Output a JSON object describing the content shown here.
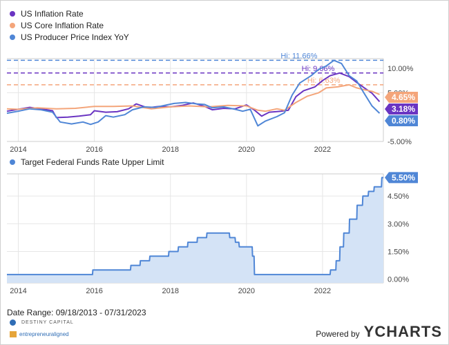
{
  "legend_top": [
    {
      "label": "US Inflation Rate",
      "color": "#6a34c2"
    },
    {
      "label": "US Core Inflation Rate",
      "color": "#f4a57a"
    },
    {
      "label": "US Producer Price Index YoY",
      "color": "#4f86d6"
    }
  ],
  "legend_bottom": [
    {
      "label": "Target Federal Funds Rate Upper Limit",
      "color": "#4f86d6"
    }
  ],
  "footer": {
    "date_range": "Date Range: 09/18/2013 - 07/31/2023",
    "logo1": "DESTINY CAPITAL",
    "logo2": "entrepreneuraligned",
    "powered_by": "Powered by",
    "brand": "YCHARTS"
  },
  "chart_data": [
    {
      "type": "line",
      "x_ticks": [
        "2014",
        "2016",
        "2018",
        "2020",
        "2022"
      ],
      "y_ticks": [
        "10.00%",
        "5.00%",
        "-5.00%"
      ],
      "ylim": [
        -5,
        12
      ],
      "xlim": [
        2013.7,
        2023.6
      ],
      "hi_lines": [
        {
          "label": "Hi: 11.66%",
          "value": 11.66,
          "color": "#4f86d6"
        },
        {
          "label": "Hi: 9.06%",
          "value": 9.06,
          "color": "#6a34c2"
        },
        {
          "label": "Hi: 6.63%",
          "value": 6.63,
          "color": "#f4a57a"
        }
      ],
      "series": [
        {
          "name": "US Inflation Rate",
          "color": "#6a34c2",
          "last_label": "3.18%",
          "x": [
            2013.7,
            2014.0,
            2014.3,
            2014.6,
            2014.9,
            2015.0,
            2015.3,
            2015.6,
            2015.9,
            2016.0,
            2016.3,
            2016.6,
            2016.9,
            2017.1,
            2017.4,
            2017.7,
            2018.0,
            2018.3,
            2018.6,
            2018.9,
            2019.1,
            2019.4,
            2019.7,
            2020.0,
            2020.2,
            2020.4,
            2020.6,
            2020.9,
            2021.1,
            2021.3,
            2021.5,
            2021.8,
            2022.0,
            2022.2,
            2022.45,
            2022.7,
            2022.9,
            2023.1,
            2023.3,
            2023.5
          ],
          "y": [
            1.2,
            1.6,
            2.0,
            1.7,
            1.3,
            -0.1,
            0.0,
            0.2,
            0.5,
            1.3,
            1.0,
            1.1,
            1.7,
            2.7,
            1.9,
            2.2,
            2.1,
            2.4,
            2.9,
            2.2,
            1.5,
            1.8,
            1.7,
            2.5,
            1.5,
            0.2,
            1.0,
            1.2,
            1.4,
            4.2,
            5.4,
            6.2,
            7.5,
            8.5,
            9.06,
            8.3,
            7.1,
            6.0,
            4.9,
            3.18
          ]
        },
        {
          "name": "US Core Inflation Rate",
          "color": "#f4a57a",
          "last_label": "4.65%",
          "x": [
            2013.7,
            2014.0,
            2014.5,
            2015.0,
            2015.5,
            2016.0,
            2016.5,
            2017.0,
            2017.5,
            2018.0,
            2018.5,
            2019.0,
            2019.5,
            2020.0,
            2020.3,
            2020.5,
            2020.8,
            2021.0,
            2021.3,
            2021.6,
            2021.9,
            2022.1,
            2022.4,
            2022.7,
            2022.9,
            2023.1,
            2023.3,
            2023.5
          ],
          "y": [
            1.7,
            1.6,
            1.9,
            1.7,
            1.8,
            2.2,
            2.2,
            2.3,
            1.7,
            2.1,
            2.3,
            2.1,
            2.4,
            2.3,
            1.4,
            1.2,
            1.7,
            1.4,
            3.0,
            4.3,
            5.0,
            6.0,
            6.2,
            6.63,
            6.0,
            5.6,
            5.3,
            4.65
          ]
        },
        {
          "name": "US Producer Price Index YoY",
          "color": "#4f86d6",
          "last_label": "0.80%",
          "x": [
            2013.7,
            2014.0,
            2014.3,
            2014.6,
            2014.9,
            2015.1,
            2015.4,
            2015.7,
            2015.9,
            2016.1,
            2016.3,
            2016.5,
            2016.8,
            2017.0,
            2017.3,
            2017.6,
            2017.9,
            2018.1,
            2018.4,
            2018.7,
            2018.9,
            2019.1,
            2019.4,
            2019.7,
            2019.9,
            2020.1,
            2020.3,
            2020.5,
            2020.8,
            2021.0,
            2021.2,
            2021.4,
            2021.7,
            2021.9,
            2022.1,
            2022.3,
            2022.5,
            2022.7,
            2022.9,
            2023.1,
            2023.3,
            2023.5
          ],
          "y": [
            0.8,
            1.2,
            1.7,
            1.5,
            1.0,
            -1.0,
            -1.4,
            -1.0,
            -1.5,
            -1.0,
            0.3,
            0.0,
            0.5,
            1.5,
            2.1,
            2.0,
            2.5,
            2.8,
            3.0,
            2.7,
            2.6,
            1.9,
            2.1,
            1.6,
            1.2,
            1.6,
            -1.8,
            -0.8,
            0.1,
            0.9,
            4.5,
            7.0,
            8.5,
            9.8,
            10.5,
            11.66,
            11.0,
            8.5,
            7.4,
            4.8,
            2.3,
            0.8
          ]
        }
      ]
    },
    {
      "type": "area",
      "x_ticks": [
        "2014",
        "2016",
        "2018",
        "2020",
        "2022"
      ],
      "y_ticks": [
        "4.50%",
        "3.00%",
        "1.50%",
        "0.00%"
      ],
      "ylim": [
        -0.2,
        5.7
      ],
      "xlim": [
        2013.7,
        2023.6
      ],
      "series": [
        {
          "name": "Target Federal Funds Rate Upper Limit",
          "color": "#4f86d6",
          "last_label": "5.50%",
          "x": [
            2013.7,
            2015.95,
            2015.96,
            2016.95,
            2016.96,
            2017.2,
            2017.21,
            2017.45,
            2017.46,
            2017.95,
            2017.96,
            2018.2,
            2018.21,
            2018.45,
            2018.46,
            2018.7,
            2018.71,
            2018.95,
            2018.96,
            2019.55,
            2019.56,
            2019.7,
            2019.71,
            2019.8,
            2019.81,
            2020.15,
            2020.16,
            2020.2,
            2020.21,
            2022.2,
            2022.21,
            2022.35,
            2022.36,
            2022.45,
            2022.46,
            2022.55,
            2022.56,
            2022.7,
            2022.71,
            2022.9,
            2022.91,
            2023.05,
            2023.06,
            2023.2,
            2023.21,
            2023.35,
            2023.36,
            2023.55,
            2023.56,
            2023.6
          ],
          "y": [
            0.25,
            0.25,
            0.5,
            0.5,
            0.75,
            0.75,
            1.0,
            1.0,
            1.25,
            1.25,
            1.5,
            1.5,
            1.75,
            1.75,
            2.0,
            2.0,
            2.25,
            2.25,
            2.5,
            2.5,
            2.25,
            2.25,
            2.0,
            2.0,
            1.75,
            1.75,
            1.25,
            1.25,
            0.25,
            0.25,
            0.5,
            0.5,
            1.0,
            1.0,
            1.75,
            1.75,
            2.5,
            2.5,
            3.25,
            3.25,
            4.0,
            4.0,
            4.5,
            4.5,
            4.75,
            4.75,
            5.0,
            5.0,
            5.5,
            5.5
          ]
        }
      ]
    }
  ]
}
